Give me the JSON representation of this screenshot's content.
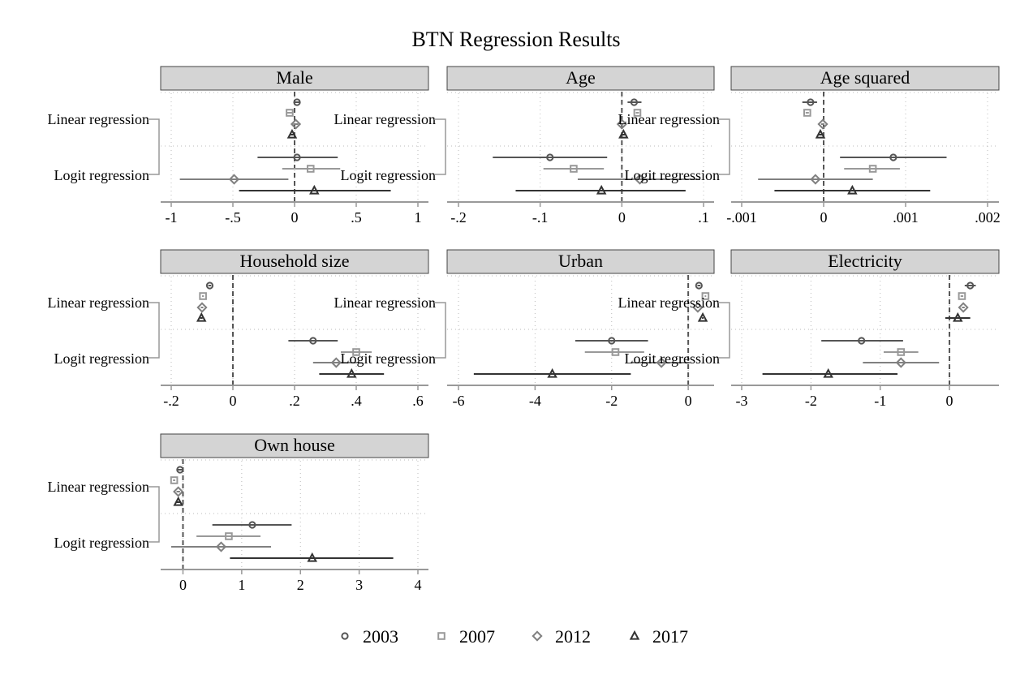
{
  "title": "BTN Regression Results",
  "row_labels": [
    "Linear regression",
    "Logit regression"
  ],
  "legend": [
    {
      "label": "2003",
      "marker": "circle",
      "color": "#555555"
    },
    {
      "label": "2007",
      "marker": "square",
      "color": "#999999"
    },
    {
      "label": "2012",
      "marker": "diamond",
      "color": "#808080"
    },
    {
      "label": "2017",
      "marker": "triangle",
      "color": "#333333"
    }
  ],
  "colors": {
    "panel_header_bg": "#d4d4d4",
    "zero_line": "#555555",
    "grid": "#bbbbbb",
    "axis": "#999999"
  },
  "chart_data": [
    {
      "type": "scatter",
      "panel": "Male",
      "xlim": [
        -1,
        1
      ],
      "xticks": [
        -1,
        -0.5,
        0,
        0.5,
        1
      ],
      "xtick_labels": [
        "-1",
        "-.5",
        "0",
        ".5",
        "1"
      ],
      "series": [
        {
          "name": "2003",
          "linear": {
            "est": 0.02,
            "lo": 0.0,
            "hi": 0.04
          },
          "logit": {
            "est": 0.02,
            "lo": -0.3,
            "hi": 0.35
          }
        },
        {
          "name": "2007",
          "linear": {
            "est": -0.04,
            "lo": -0.06,
            "hi": -0.02
          },
          "logit": {
            "est": 0.13,
            "lo": -0.1,
            "hi": 0.37
          }
        },
        {
          "name": "2012",
          "linear": {
            "est": 0.01,
            "lo": -0.01,
            "hi": 0.03
          },
          "logit": {
            "est": -0.49,
            "lo": -0.93,
            "hi": -0.05
          }
        },
        {
          "name": "2017",
          "linear": {
            "est": -0.02,
            "lo": -0.04,
            "hi": 0.0
          },
          "logit": {
            "est": 0.16,
            "lo": -0.45,
            "hi": 0.78
          }
        }
      ]
    },
    {
      "type": "scatter",
      "panel": "Age",
      "xlim": [
        -0.2,
        0.1
      ],
      "xticks": [
        -0.2,
        -0.1,
        0,
        0.1
      ],
      "xtick_labels": [
        "-.2",
        "-.1",
        "0",
        ".1"
      ],
      "series": [
        {
          "name": "2003",
          "linear": {
            "est": 0.015,
            "lo": 0.007,
            "hi": 0.024
          },
          "logit": {
            "est": -0.088,
            "lo": -0.158,
            "hi": -0.018
          }
        },
        {
          "name": "2007",
          "linear": {
            "est": 0.019,
            "lo": 0.017,
            "hi": 0.021
          },
          "logit": {
            "est": -0.059,
            "lo": -0.096,
            "hi": -0.022
          }
        },
        {
          "name": "2012",
          "linear": {
            "est": 0.0,
            "lo": -0.002,
            "hi": 0.002
          },
          "logit": {
            "est": 0.022,
            "lo": -0.054,
            "hi": 0.096
          }
        },
        {
          "name": "2017",
          "linear": {
            "est": 0.002,
            "lo": 0.0,
            "hi": 0.004
          },
          "logit": {
            "est": -0.025,
            "lo": -0.13,
            "hi": 0.078
          }
        }
      ]
    },
    {
      "type": "scatter",
      "panel": "Age squared",
      "xlim": [
        -0.001,
        0.002
      ],
      "xticks": [
        -0.001,
        0,
        0.001,
        0.002
      ],
      "xtick_labels": [
        "-.001",
        "0",
        ".001",
        ".002"
      ],
      "series": [
        {
          "name": "2003",
          "linear": {
            "est": -0.00016,
            "lo": -0.00026,
            "hi": -8e-05
          },
          "logit": {
            "est": 0.00085,
            "lo": 0.0002,
            "hi": 0.0015
          }
        },
        {
          "name": "2007",
          "linear": {
            "est": -0.0002,
            "lo": -0.00022,
            "hi": -0.00018
          },
          "logit": {
            "est": 0.0006,
            "lo": 0.00025,
            "hi": 0.00093
          }
        },
        {
          "name": "2012",
          "linear": {
            "est": -1e-05,
            "lo": -3e-05,
            "hi": 1e-05
          },
          "logit": {
            "est": -0.0001,
            "lo": -0.0008,
            "hi": 0.0006
          }
        },
        {
          "name": "2017",
          "linear": {
            "est": -4e-05,
            "lo": -6e-05,
            "hi": -2e-05
          },
          "logit": {
            "est": 0.00035,
            "lo": -0.0006,
            "hi": 0.0013
          }
        }
      ]
    },
    {
      "type": "scatter",
      "panel": "Household size",
      "xlim": [
        -0.2,
        0.6
      ],
      "xticks": [
        -0.2,
        0,
        0.2,
        0.4,
        0.6
      ],
      "xtick_labels": [
        "-.2",
        "0",
        ".2",
        ".4",
        ".6"
      ],
      "series": [
        {
          "name": "2003",
          "linear": {
            "est": -0.075,
            "lo": -0.08,
            "hi": -0.07
          },
          "logit": {
            "est": 0.26,
            "lo": 0.18,
            "hi": 0.34
          }
        },
        {
          "name": "2007",
          "linear": {
            "est": -0.097,
            "lo": -0.1,
            "hi": -0.094
          },
          "logit": {
            "est": 0.4,
            "lo": 0.35,
            "hi": 0.45
          }
        },
        {
          "name": "2012",
          "linear": {
            "est": -0.1,
            "lo": -0.104,
            "hi": -0.096
          },
          "logit": {
            "est": 0.335,
            "lo": 0.26,
            "hi": 0.41
          }
        },
        {
          "name": "2017",
          "linear": {
            "est": -0.102,
            "lo": -0.106,
            "hi": -0.098
          },
          "logit": {
            "est": 0.385,
            "lo": 0.28,
            "hi": 0.49
          }
        }
      ]
    },
    {
      "type": "scatter",
      "panel": "Urban",
      "xlim": [
        -6,
        0.4
      ],
      "xticks": [
        -6,
        -4,
        -2,
        0
      ],
      "xtick_labels": [
        "-6",
        "-4",
        "-2",
        "0"
      ],
      "series": [
        {
          "name": "2003",
          "linear": {
            "est": 0.28,
            "lo": 0.24,
            "hi": 0.32
          },
          "logit": {
            "est": -2.0,
            "lo": -2.95,
            "hi": -1.05
          }
        },
        {
          "name": "2007",
          "linear": {
            "est": 0.45,
            "lo": 0.43,
            "hi": 0.47
          },
          "logit": {
            "est": -1.9,
            "lo": -2.7,
            "hi": -1.15
          }
        },
        {
          "name": "2012",
          "linear": {
            "est": 0.25,
            "lo": 0.23,
            "hi": 0.27
          },
          "logit": {
            "est": -0.7,
            "lo": -1.5,
            "hi": 0.05
          }
        },
        {
          "name": "2017",
          "linear": {
            "est": 0.38,
            "lo": 0.36,
            "hi": 0.4
          },
          "logit": {
            "est": -3.55,
            "lo": -5.6,
            "hi": -1.5
          }
        }
      ]
    },
    {
      "type": "scatter",
      "panel": "Electricity",
      "xlim": [
        -3,
        0.55
      ],
      "xticks": [
        -3,
        -2,
        -1,
        0
      ],
      "xtick_labels": [
        "-3",
        "-2",
        "-1",
        "0"
      ],
      "series": [
        {
          "name": "2003",
          "linear": {
            "est": 0.3,
            "lo": 0.22,
            "hi": 0.38
          },
          "logit": {
            "est": -1.27,
            "lo": -1.85,
            "hi": -0.67
          }
        },
        {
          "name": "2007",
          "linear": {
            "est": 0.18,
            "lo": 0.16,
            "hi": 0.2
          },
          "logit": {
            "est": -0.7,
            "lo": -0.95,
            "hi": -0.45
          }
        },
        {
          "name": "2012",
          "linear": {
            "est": 0.2,
            "lo": 0.18,
            "hi": 0.22
          },
          "logit": {
            "est": -0.7,
            "lo": -1.25,
            "hi": -0.15
          }
        },
        {
          "name": "2017",
          "linear": {
            "est": 0.12,
            "lo": -0.06,
            "hi": 0.3
          },
          "logit": {
            "est": -1.75,
            "lo": -2.7,
            "hi": -0.75
          }
        }
      ]
    },
    {
      "type": "scatter",
      "panel": "Own house",
      "xlim": [
        -0.2,
        4
      ],
      "xticks": [
        0,
        1,
        2,
        3,
        4
      ],
      "xtick_labels": [
        "0",
        "1",
        "2",
        "3",
        "4"
      ],
      "series": [
        {
          "name": "2003",
          "linear": {
            "est": -0.05,
            "lo": -0.1,
            "hi": 0.0
          },
          "logit": {
            "est": 1.18,
            "lo": 0.5,
            "hi": 1.85
          }
        },
        {
          "name": "2007",
          "linear": {
            "est": -0.15,
            "lo": -0.17,
            "hi": -0.13
          },
          "logit": {
            "est": 0.78,
            "lo": 0.23,
            "hi": 1.32
          }
        },
        {
          "name": "2012",
          "linear": {
            "est": -0.08,
            "lo": -0.11,
            "hi": -0.05
          },
          "logit": {
            "est": 0.65,
            "lo": -0.2,
            "hi": 1.5
          }
        },
        {
          "name": "2017",
          "linear": {
            "est": -0.08,
            "lo": -0.11,
            "hi": -0.05
          },
          "logit": {
            "est": 2.2,
            "lo": 0.8,
            "hi": 3.58
          }
        }
      ]
    }
  ]
}
